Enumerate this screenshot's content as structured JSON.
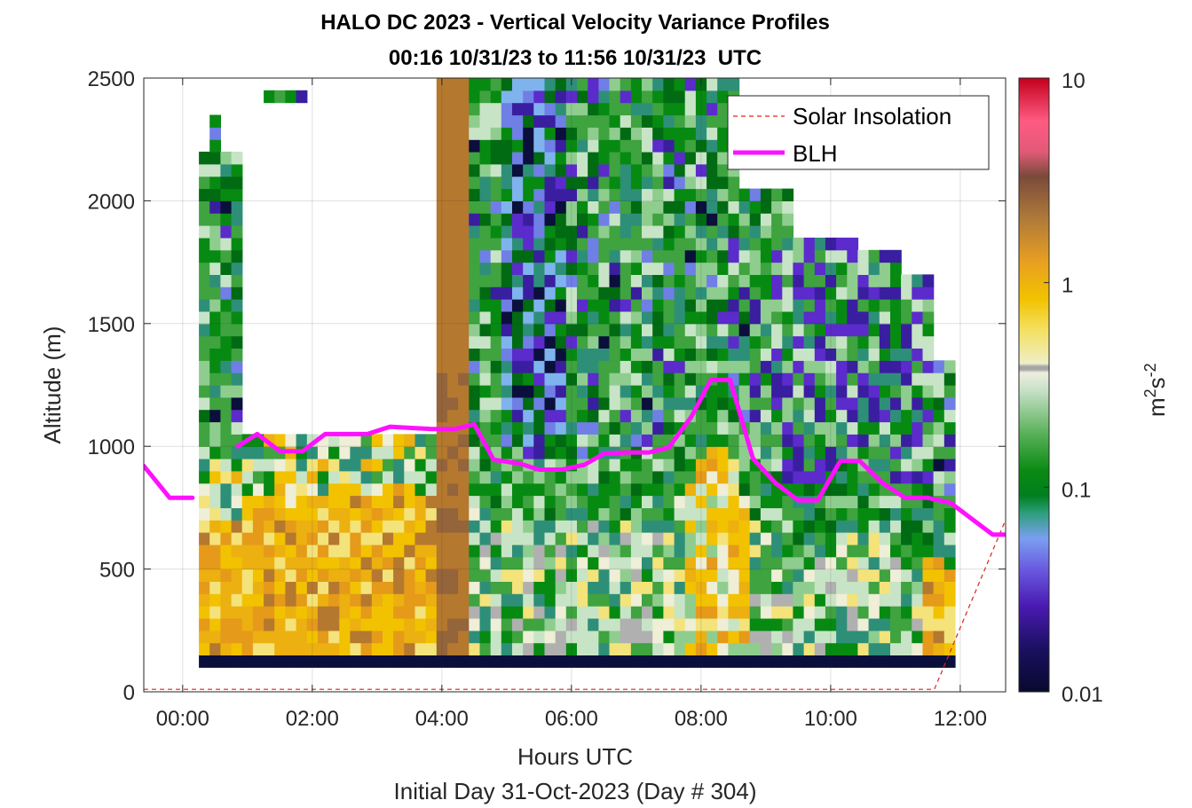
{
  "chart_data": {
    "type": "heatmap",
    "title": "HALO DC 2023 - Vertical Velocity Variance Profiles",
    "subtitle": "00:16 10/31/23 to 11:56 10/31/23  UTC",
    "xlabel": "Hours UTC",
    "xlabel2": "Initial Day 31-Oct-2023 (Day # 304)",
    "ylabel": "Altitude (m)",
    "xlim": [
      -0.6,
      12.7
    ],
    "ylim": [
      0,
      2500
    ],
    "x_tick_labels": [
      "00:00",
      "02:00",
      "04:00",
      "06:00",
      "08:00",
      "10:00",
      "12:00"
    ],
    "x_ticks": [
      0,
      2,
      4,
      6,
      8,
      10,
      12
    ],
    "y_ticks": [
      0,
      500,
      1000,
      1500,
      2000,
      2500
    ],
    "y_tick_labels": [
      "0",
      "500",
      "1000",
      "1500",
      "2000",
      "2500"
    ],
    "colorbar": {
      "label": "m²s⁻²",
      "label_main": "m",
      "label_sup1": "2",
      "label_mid": "s",
      "label_sup2": "-2",
      "scale": "log",
      "range": [
        0.01,
        10
      ],
      "tick_values": [
        10,
        1,
        0.1,
        0.01
      ],
      "tick_labels": [
        "10",
        "1",
        "0.1",
        "0.01"
      ]
    },
    "grid": true,
    "legend_position": "top-right",
    "legend": [
      {
        "name": "Solar Insolation",
        "color": "#dd2222",
        "style": "dashed"
      },
      {
        "name": "BLH",
        "color": "#ff11ff",
        "style": "solid"
      }
    ],
    "heatmap_extent": {
      "x_start": 0.25,
      "x_end": 11.95,
      "y_start": 100,
      "y_end": 2500
    },
    "series": [
      {
        "name": "BLH",
        "x": [
          -0.6,
          -0.2,
          0.15,
          0.5,
          0.85,
          1.15,
          1.5,
          1.85,
          2.2,
          2.5,
          2.85,
          3.2,
          3.5,
          3.85,
          4.2,
          4.5,
          4.8,
          5.2,
          5.5,
          5.85,
          6.2,
          6.5,
          6.85,
          7.2,
          7.5,
          7.85,
          8.15,
          8.45,
          8.8,
          9.15,
          9.5,
          9.8,
          10.15,
          10.45,
          10.8,
          11.15,
          11.5,
          11.85,
          12.2,
          12.5,
          12.7
        ],
        "y": [
          920,
          790,
          790,
          null,
          1000,
          1050,
          980,
          980,
          1050,
          1050,
          1050,
          1080,
          1075,
          1070,
          1070,
          1090,
          945,
          930,
          905,
          905,
          925,
          970,
          975,
          975,
          995,
          1120,
          1270,
          1270,
          950,
          850,
          780,
          780,
          940,
          940,
          850,
          790,
          790,
          770,
          700,
          640,
          640
        ]
      },
      {
        "name": "Solar Insolation",
        "x": [
          -0.6,
          11.6,
          12.7
        ],
        "y": [
          10,
          10,
          700
        ]
      }
    ]
  }
}
